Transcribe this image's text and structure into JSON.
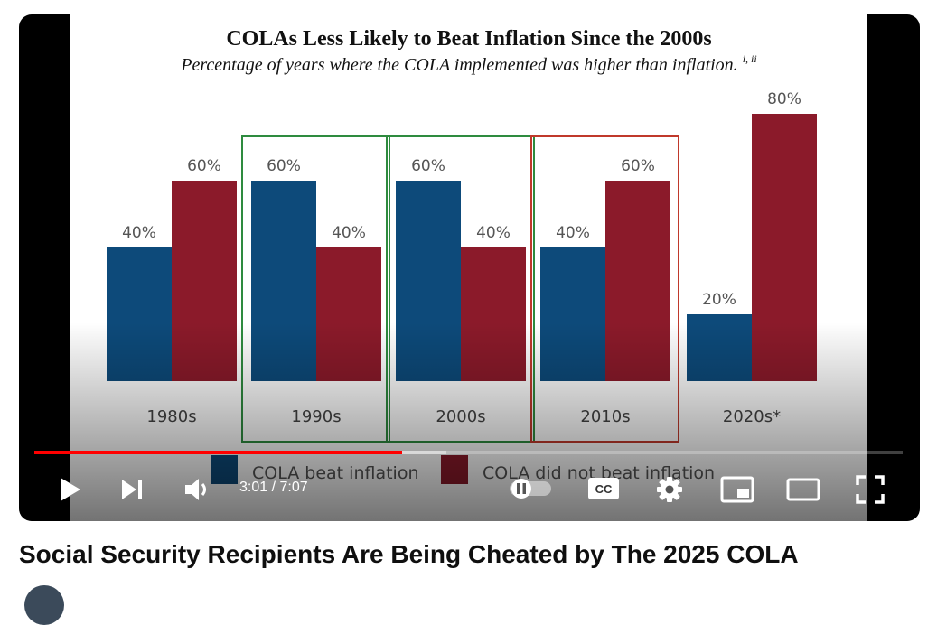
{
  "video": {
    "title": "Social Security Recipients Are Being Cheated by The 2025 COLA",
    "current_time": "3:01",
    "duration": "7:07",
    "time_display": "3:01 / 7:07",
    "progress_fraction": 0.424,
    "buffered_fraction": 0.475
  },
  "controls": [
    {
      "name": "play-button",
      "icon": "play-icon"
    },
    {
      "name": "next-button",
      "icon": "skip-next-icon"
    },
    {
      "name": "volume-button",
      "icon": "volume-icon"
    },
    {
      "name": "autoplay-toggle",
      "icon": "pause-toggle-icon"
    },
    {
      "name": "subtitles-button",
      "icon": "cc-icon",
      "label": "CC"
    },
    {
      "name": "settings-button",
      "icon": "gear-icon"
    },
    {
      "name": "miniplayer-button",
      "icon": "miniplayer-icon"
    },
    {
      "name": "theater-button",
      "icon": "theater-mode-icon"
    },
    {
      "name": "fullscreen-button",
      "icon": "fullscreen-icon"
    }
  ],
  "colors": {
    "beat": "#0d4a7a",
    "not_beat": "#8b1a2a",
    "green_box": "#2e8b3f",
    "red_box": "#c0392b",
    "progress": "#ff0000"
  },
  "chart_data": {
    "type": "bar",
    "title": "COLAs Less Likely to Beat Inflation Since the 2000s",
    "subtitle": "Percentage of years where the COLA implemented was higher than inflation.",
    "subtitle_superscript": "i, ii",
    "categories": [
      "1980s",
      "1990s",
      "2000s",
      "2010s",
      "2020s*"
    ],
    "series": [
      {
        "name": "COLA beat inflation",
        "values": [
          40,
          60,
          60,
          40,
          20
        ]
      },
      {
        "name": "COLA did not beat inflation",
        "values": [
          60,
          40,
          40,
          60,
          80
        ]
      }
    ],
    "data_labels": [
      [
        "40%",
        "60%",
        "60%",
        "40%",
        "20%"
      ],
      [
        "60%",
        "40%",
        "40%",
        "60%",
        "80%"
      ]
    ],
    "ylim": [
      0,
      80
    ],
    "grid": false,
    "legend": "bottom",
    "highlight_boxes": [
      {
        "category": "1990s",
        "color": "green"
      },
      {
        "category": "2000s",
        "color": "green"
      },
      {
        "category": "2010s",
        "color": "red"
      }
    ]
  }
}
